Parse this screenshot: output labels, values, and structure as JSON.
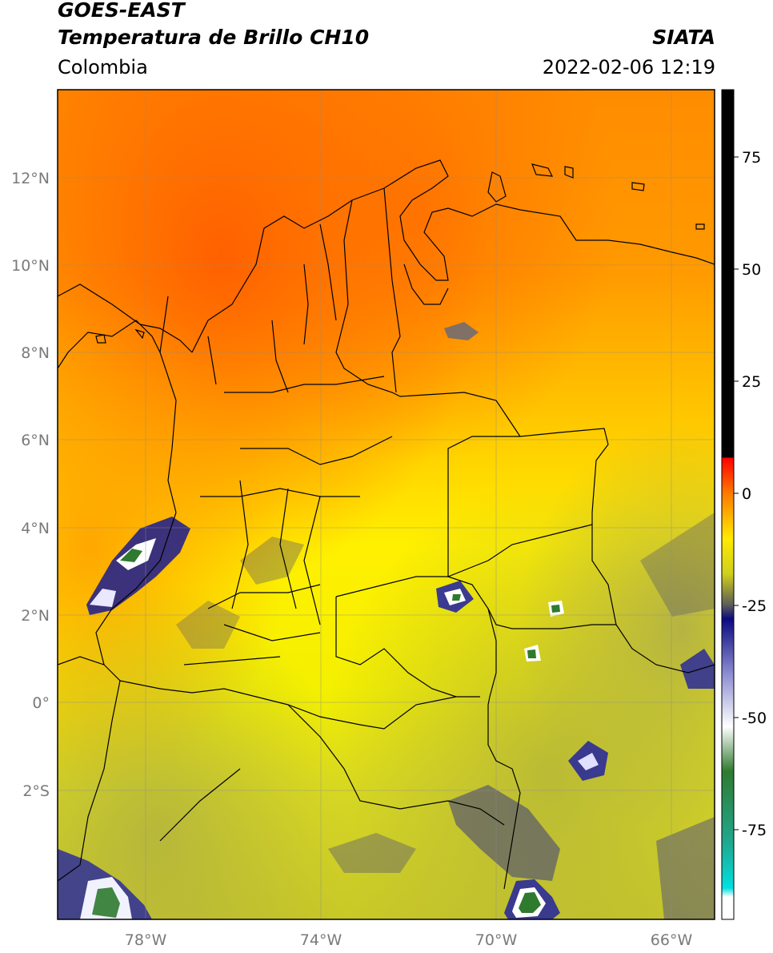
{
  "header": {
    "satellite": "GOES-EAST",
    "product": "Temperatura de Brillo CH10",
    "brand": "SIATA",
    "region": "Colombia",
    "datetime": "2022-02-06 12:19"
  },
  "map": {
    "lat_ticks": [
      "12°N",
      "10°N",
      "8°N",
      "6°N",
      "4°N",
      "2°N",
      "0°",
      "2°S"
    ],
    "lon_ticks": [
      "78°W",
      "74°W",
      "70°W",
      "66°W"
    ],
    "extent": {
      "lon_min": -80,
      "lon_max": -65,
      "lat_min": -5,
      "lat_max": 14
    },
    "grid": true
  },
  "colorbar": {
    "tick_labels": [
      "75",
      "50",
      "25",
      "0",
      "-25",
      "-50",
      "-75"
    ],
    "range": [
      -95,
      90
    ],
    "stops": [
      {
        "value": 90,
        "color": "#000000"
      },
      {
        "value": 8,
        "color": "#000000"
      },
      {
        "value": 7.9,
        "color": "#ff0000"
      },
      {
        "value": 0,
        "color": "#ff7a00"
      },
      {
        "value": -10,
        "color": "#ffea00"
      },
      {
        "value": -18,
        "color": "#cfcf1c"
      },
      {
        "value": -25,
        "color": "#5a5a5a"
      },
      {
        "value": -28,
        "color": "#0a0a80"
      },
      {
        "value": -40,
        "color": "#8a8ad0"
      },
      {
        "value": -52,
        "color": "#ffffff"
      },
      {
        "value": -62,
        "color": "#2f7a2f"
      },
      {
        "value": -78,
        "color": "#20a890"
      },
      {
        "value": -88,
        "color": "#00e0e0"
      },
      {
        "value": -90,
        "color": "#ffffff"
      },
      {
        "value": -95,
        "color": "#ffffff"
      }
    ]
  }
}
